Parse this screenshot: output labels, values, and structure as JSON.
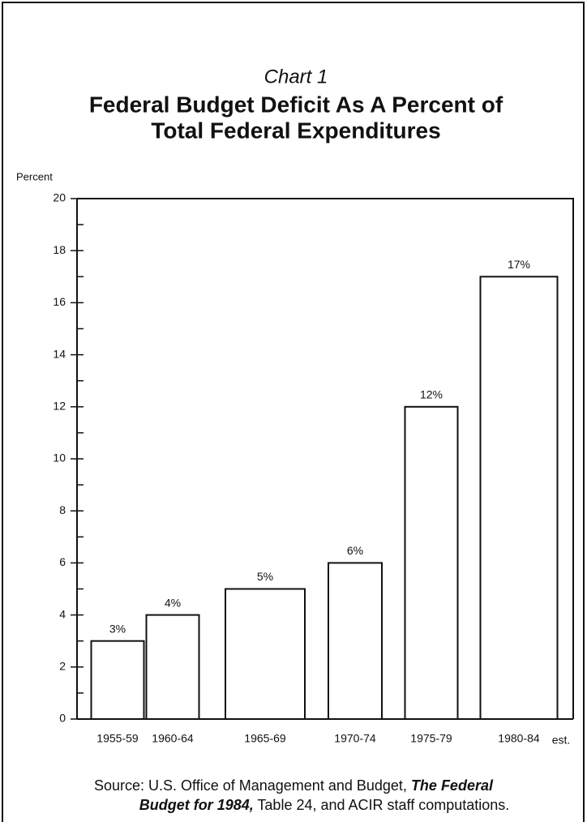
{
  "chart_data": {
    "type": "bar",
    "label": "Chart 1",
    "title": [
      "Federal Budget Deficit As A Percent of",
      "Total Federal Expenditures"
    ],
    "y_label": "Percent",
    "categories": [
      "1955-59",
      "1960-64",
      "1965-69",
      "1970-74",
      "1975-79",
      "1980-84"
    ],
    "annotation": "est.",
    "values": [
      3,
      4,
      5,
      6,
      12,
      17
    ],
    "value_labels": [
      "3%",
      "4%",
      "5%",
      "6%",
      "12%",
      "17%"
    ],
    "color": "#ffffff",
    "ylim": [
      0,
      20
    ],
    "yticks": [
      0,
      2,
      4,
      6,
      8,
      10,
      12,
      14,
      16,
      18,
      20
    ],
    "minor_yticks": [
      1,
      3,
      5,
      7,
      9,
      11,
      13,
      15,
      17,
      19
    ],
    "source": {
      "line1_plain": "Source: U.S. Office of Management and Budget,",
      "line1_bold": "The Federal",
      "line2_bold": "Budget for 1984,",
      "line2_plain": "Table 24, and ACIR staff computations."
    }
  }
}
